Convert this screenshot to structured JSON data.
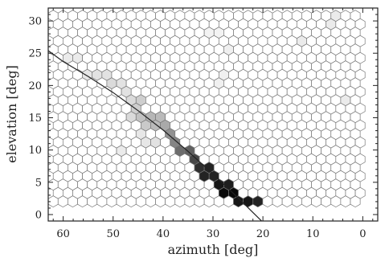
{
  "chart_data": {
    "type": "heatmap",
    "subtype": "hexbin",
    "xlabel": "azimuth [deg]",
    "ylabel": "elevation [deg]",
    "xlim": [
      63,
      -3
    ],
    "ylim": [
      -1,
      32
    ],
    "x_reversed": true,
    "x_ticks": [
      60,
      50,
      40,
      30,
      20,
      10,
      0
    ],
    "y_ticks": [
      0,
      5,
      10,
      15,
      20,
      25,
      30
    ],
    "x_minor_step": 2,
    "y_minor_step": 1,
    "grid": false,
    "colormap": "white-to-black (higher density = darker)",
    "hex_extent": {
      "x": [
        62,
        0
      ],
      "y": [
        1.5,
        30.8
      ]
    },
    "high_density_cells": [
      {
        "x": 52,
        "y": 21.5,
        "density": 0.12
      },
      {
        "x": 50,
        "y": 20.5,
        "density": 0.15
      },
      {
        "x": 48,
        "y": 19.5,
        "density": 0.12
      },
      {
        "x": 47,
        "y": 18,
        "density": 0.15
      },
      {
        "x": 45,
        "y": 17,
        "density": 0.2
      },
      {
        "x": 44,
        "y": 15.5,
        "density": 0.25
      },
      {
        "x": 42,
        "y": 15,
        "density": 0.3
      },
      {
        "x": 41,
        "y": 14.5,
        "density": 0.28
      },
      {
        "x": 40,
        "y": 13.5,
        "density": 0.35
      },
      {
        "x": 39,
        "y": 12.5,
        "density": 0.45
      },
      {
        "x": 38,
        "y": 11.5,
        "density": 0.45
      },
      {
        "x": 37,
        "y": 11,
        "density": 0.5
      },
      {
        "x": 36,
        "y": 10,
        "density": 0.6
      },
      {
        "x": 35,
        "y": 9.5,
        "density": 0.65
      },
      {
        "x": 34,
        "y": 8.5,
        "density": 0.7
      },
      {
        "x": 33,
        "y": 8,
        "density": 0.75
      },
      {
        "x": 32,
        "y": 7,
        "density": 0.85
      },
      {
        "x": 31,
        "y": 6.5,
        "density": 0.9
      },
      {
        "x": 30,
        "y": 6,
        "density": 0.9
      },
      {
        "x": 29,
        "y": 5,
        "density": 0.95
      },
      {
        "x": 28,
        "y": 4.5,
        "density": 0.92
      },
      {
        "x": 27,
        "y": 3.5,
        "density": 1.0
      },
      {
        "x": 26,
        "y": 3,
        "density": 0.95
      },
      {
        "x": 25,
        "y": 2.5,
        "density": 0.9
      },
      {
        "x": 24,
        "y": 2,
        "density": 0.95
      },
      {
        "x": 22,
        "y": 2,
        "density": 0.9
      },
      {
        "x": 46,
        "y": 16,
        "density": 0.15
      },
      {
        "x": 43,
        "y": 14,
        "density": 0.22
      },
      {
        "x": 41,
        "y": 11,
        "density": 0.12
      },
      {
        "x": 44,
        "y": 12,
        "density": 0.1
      },
      {
        "x": 55,
        "y": 22,
        "density": 0.1
      },
      {
        "x": 58,
        "y": 24,
        "density": 0.08
      },
      {
        "x": 28,
        "y": 21,
        "density": 0.06
      },
      {
        "x": 27,
        "y": 25,
        "density": 0.06
      },
      {
        "x": 12,
        "y": 27,
        "density": 0.08
      },
      {
        "x": 6,
        "y": 30,
        "density": 0.08
      },
      {
        "x": 3,
        "y": 18,
        "density": 0.08
      },
      {
        "x": 49,
        "y": 10,
        "density": 0.08
      },
      {
        "x": 30,
        "y": 28,
        "density": 0.05
      }
    ],
    "fit_curve": {
      "x": [
        63,
        60,
        55,
        50,
        45,
        40,
        35,
        30,
        25,
        20
      ],
      "y": [
        25.4,
        23.7,
        21.4,
        18.9,
        16.1,
        13.1,
        9.8,
        6.3,
        2.6,
        -1.2
      ]
    }
  }
}
